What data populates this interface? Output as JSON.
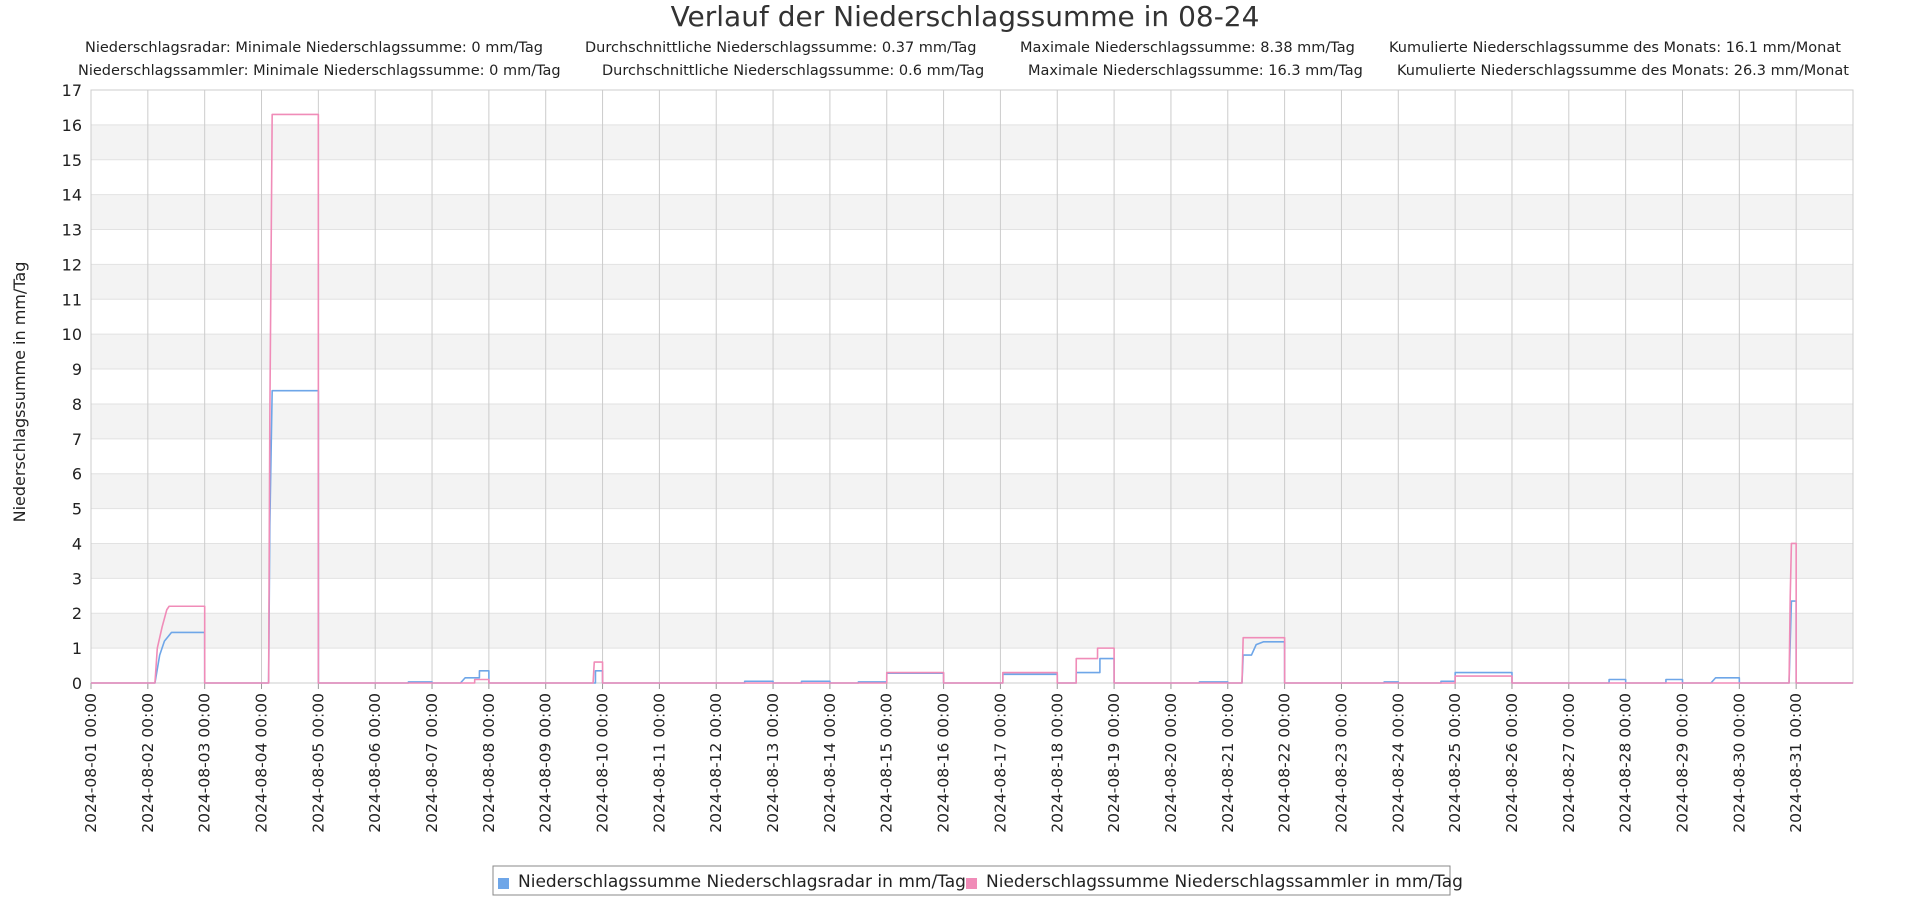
{
  "chart_data": {
    "type": "line",
    "title": "Verlauf der Niederschlagssumme in 08-24",
    "stats": [
      [
        "Niederschlagsradar: Minimale Niederschlagssumme: 0 mm/Tag",
        "Durchschnittliche Niederschlagssumme: 0.37 mm/Tag",
        "Maximale Niederschlagssumme: 8.38 mm/Tag",
        "Kumulierte Niederschlagssumme des Monats: 16.1 mm/Monat"
      ],
      [
        "Niederschlagssammler: Minimale Niederschlagssumme: 0 mm/Tag",
        "Durchschnittliche Niederschlagssumme: 0.6 mm/Tag",
        "Maximale Niederschlagssumme: 16.3 mm/Tag",
        "Kumulierte Niederschlagssumme des Monats: 26.3 mm/Monat"
      ]
    ],
    "ylabel": "Niederschlagssumme in mm/Tag",
    "xlabel": "",
    "ylim": [
      0,
      17
    ],
    "yticks": [
      0,
      1,
      2,
      3,
      4,
      5,
      6,
      7,
      8,
      9,
      10,
      11,
      12,
      13,
      14,
      15,
      16,
      17
    ],
    "xlim": [
      "2024-08-01 00:00",
      "2024-09-01 00:00"
    ],
    "xticks": [
      "2024-08-01 00:00",
      "2024-08-02 00:00",
      "2024-08-03 00:00",
      "2024-08-04 00:00",
      "2024-08-05 00:00",
      "2024-08-06 00:00",
      "2024-08-07 00:00",
      "2024-08-08 00:00",
      "2024-08-09 00:00",
      "2024-08-10 00:00",
      "2024-08-11 00:00",
      "2024-08-12 00:00",
      "2024-08-13 00:00",
      "2024-08-14 00:00",
      "2024-08-15 00:00",
      "2024-08-16 00:00",
      "2024-08-17 00:00",
      "2024-08-18 00:00",
      "2024-08-19 00:00",
      "2024-08-20 00:00",
      "2024-08-21 00:00",
      "2024-08-22 00:00",
      "2024-08-23 00:00",
      "2024-08-24 00:00",
      "2024-08-25 00:00",
      "2024-08-26 00:00",
      "2024-08-27 00:00",
      "2024-08-28 00:00",
      "2024-08-29 00:00",
      "2024-08-30 00:00",
      "2024-08-31 00:00"
    ],
    "grid": true,
    "legend_position": "bottom-center",
    "series": [
      {
        "name": "Niederschlagssumme Niederschlagsradar in mm/Tag",
        "color": "#6ea6e8",
        "points": [
          [
            "2024-08-01 00:00",
            0
          ],
          [
            "2024-08-02 03:00",
            0
          ],
          [
            "2024-08-02 05:00",
            0.8
          ],
          [
            "2024-08-02 07:00",
            1.2
          ],
          [
            "2024-08-02 10:00",
            1.45
          ],
          [
            "2024-08-03 00:00",
            1.45
          ],
          [
            "2024-08-03 00:01",
            0
          ],
          [
            "2024-08-04 03:00",
            0
          ],
          [
            "2024-08-04 03:30",
            4.5
          ],
          [
            "2024-08-04 04:30",
            8.38
          ],
          [
            "2024-08-05 00:00",
            8.38
          ],
          [
            "2024-08-05 00:01",
            0
          ],
          [
            "2024-08-06 14:00",
            0
          ],
          [
            "2024-08-06 14:01",
            0.03
          ],
          [
            "2024-08-07 00:00",
            0.03
          ],
          [
            "2024-08-07 00:01",
            0
          ],
          [
            "2024-08-07 12:00",
            0
          ],
          [
            "2024-08-07 14:00",
            0.15
          ],
          [
            "2024-08-07 20:00",
            0.15
          ],
          [
            "2024-08-07 20:01",
            0.35
          ],
          [
            "2024-08-08 00:00",
            0.35
          ],
          [
            "2024-08-08 00:01",
            0
          ],
          [
            "2024-08-09 21:00",
            0
          ],
          [
            "2024-08-09 21:01",
            0.35
          ],
          [
            "2024-08-10 00:00",
            0.35
          ],
          [
            "2024-08-10 00:01",
            0
          ],
          [
            "2024-08-12 12:00",
            0
          ],
          [
            "2024-08-12 12:01",
            0.05
          ],
          [
            "2024-08-13 00:00",
            0.05
          ],
          [
            "2024-08-13 00:01",
            0
          ],
          [
            "2024-08-13 12:00",
            0
          ],
          [
            "2024-08-13 12:01",
            0.05
          ],
          [
            "2024-08-14 00:00",
            0.05
          ],
          [
            "2024-08-14 00:01",
            0
          ],
          [
            "2024-08-14 12:00",
            0
          ],
          [
            "2024-08-14 12:01",
            0.03
          ],
          [
            "2024-08-15 00:00",
            0.03
          ],
          [
            "2024-08-15 00:01",
            0.28
          ],
          [
            "2024-08-16 00:00",
            0.28
          ],
          [
            "2024-08-16 00:01",
            0
          ],
          [
            "2024-08-17 01:00",
            0
          ],
          [
            "2024-08-17 01:01",
            0.25
          ],
          [
            "2024-08-18 00:00",
            0.25
          ],
          [
            "2024-08-18 00:01",
            0
          ],
          [
            "2024-08-18 08:00",
            0
          ],
          [
            "2024-08-18 08:01",
            0.3
          ],
          [
            "2024-08-18 18:00",
            0.3
          ],
          [
            "2024-08-18 18:01",
            0.7
          ],
          [
            "2024-08-19 00:00",
            0.7
          ],
          [
            "2024-08-19 00:01",
            0
          ],
          [
            "2024-08-20 12:00",
            0
          ],
          [
            "2024-08-20 12:01",
            0.03
          ],
          [
            "2024-08-21 00:00",
            0.03
          ],
          [
            "2024-08-21 00:01",
            0
          ],
          [
            "2024-08-21 06:00",
            0
          ],
          [
            "2024-08-21 06:30",
            0.8
          ],
          [
            "2024-08-21 10:00",
            0.8
          ],
          [
            "2024-08-21 12:00",
            1.1
          ],
          [
            "2024-08-21 15:00",
            1.18
          ],
          [
            "2024-08-22 00:00",
            1.18
          ],
          [
            "2024-08-22 00:01",
            0
          ],
          [
            "2024-08-23 18:00",
            0
          ],
          [
            "2024-08-23 18:01",
            0.03
          ],
          [
            "2024-08-24 00:00",
            0.03
          ],
          [
            "2024-08-24 00:01",
            0
          ],
          [
            "2024-08-24 18:00",
            0
          ],
          [
            "2024-08-24 18:01",
            0.05
          ],
          [
            "2024-08-25 00:00",
            0.05
          ],
          [
            "2024-08-25 00:01",
            0.3
          ],
          [
            "2024-08-26 00:00",
            0.3
          ],
          [
            "2024-08-26 00:01",
            0
          ],
          [
            "2024-08-27 17:00",
            0
          ],
          [
            "2024-08-27 17:01",
            0.1
          ],
          [
            "2024-08-28 00:00",
            0.1
          ],
          [
            "2024-08-28 00:01",
            0
          ],
          [
            "2024-08-28 17:00",
            0
          ],
          [
            "2024-08-28 17:01",
            0.1
          ],
          [
            "2024-08-29 00:00",
            0.1
          ],
          [
            "2024-08-29 00:01",
            0
          ],
          [
            "2024-08-29 12:00",
            0
          ],
          [
            "2024-08-29 14:00",
            0.15
          ],
          [
            "2024-08-30 00:00",
            0.15
          ],
          [
            "2024-08-30 00:01",
            0
          ],
          [
            "2024-08-30 21:00",
            0
          ],
          [
            "2024-08-30 21:30",
            1.2
          ],
          [
            "2024-08-30 22:00",
            2.35
          ],
          [
            "2024-08-31 00:00",
            2.35
          ],
          [
            "2024-08-31 00:01",
            0
          ],
          [
            "2024-09-01 00:00",
            0
          ]
        ]
      },
      {
        "name": "Niederschlagssumme Niederschlagssammler in mm/Tag",
        "color": "#f08cb8",
        "points": [
          [
            "2024-08-01 00:00",
            0
          ],
          [
            "2024-08-02 03:00",
            0
          ],
          [
            "2024-08-02 04:00",
            1.0
          ],
          [
            "2024-08-02 06:00",
            1.6
          ],
          [
            "2024-08-02 08:00",
            2.1
          ],
          [
            "2024-08-02 09:00",
            2.2
          ],
          [
            "2024-08-03 00:00",
            2.2
          ],
          [
            "2024-08-03 00:01",
            0
          ],
          [
            "2024-08-04 03:00",
            0
          ],
          [
            "2024-08-04 03:30",
            7.5
          ],
          [
            "2024-08-04 04:30",
            16.3
          ],
          [
            "2024-08-05 00:00",
            16.3
          ],
          [
            "2024-08-05 00:01",
            0
          ],
          [
            "2024-08-07 18:00",
            0
          ],
          [
            "2024-08-07 18:01",
            0.1
          ],
          [
            "2024-08-08 00:00",
            0.1
          ],
          [
            "2024-08-08 00:01",
            0
          ],
          [
            "2024-08-09 20:00",
            0
          ],
          [
            "2024-08-09 20:30",
            0.6
          ],
          [
            "2024-08-10 00:00",
            0.6
          ],
          [
            "2024-08-10 00:01",
            0
          ],
          [
            "2024-08-15 00:00",
            0
          ],
          [
            "2024-08-15 00:01",
            0.3
          ],
          [
            "2024-08-16 00:00",
            0.3
          ],
          [
            "2024-08-16 00:01",
            0
          ],
          [
            "2024-08-17 01:00",
            0
          ],
          [
            "2024-08-17 01:01",
            0.3
          ],
          [
            "2024-08-18 00:00",
            0.3
          ],
          [
            "2024-08-18 00:01",
            0
          ],
          [
            "2024-08-18 08:00",
            0
          ],
          [
            "2024-08-18 08:01",
            0.7
          ],
          [
            "2024-08-18 17:00",
            0.7
          ],
          [
            "2024-08-18 17:01",
            1.0
          ],
          [
            "2024-08-19 00:00",
            1.0
          ],
          [
            "2024-08-19 00:01",
            0
          ],
          [
            "2024-08-21 06:00",
            0
          ],
          [
            "2024-08-21 06:30",
            1.3
          ],
          [
            "2024-08-22 00:00",
            1.3
          ],
          [
            "2024-08-22 00:01",
            0
          ],
          [
            "2024-08-25 00:00",
            0
          ],
          [
            "2024-08-25 00:01",
            0.2
          ],
          [
            "2024-08-26 00:00",
            0.2
          ],
          [
            "2024-08-26 00:01",
            0
          ],
          [
            "2024-08-30 21:00",
            0
          ],
          [
            "2024-08-30 21:30",
            2.5
          ],
          [
            "2024-08-30 22:00",
            4.0
          ],
          [
            "2024-08-31 00:00",
            4.0
          ],
          [
            "2024-08-31 00:01",
            0
          ],
          [
            "2024-09-01 00:00",
            0
          ]
        ]
      }
    ]
  }
}
